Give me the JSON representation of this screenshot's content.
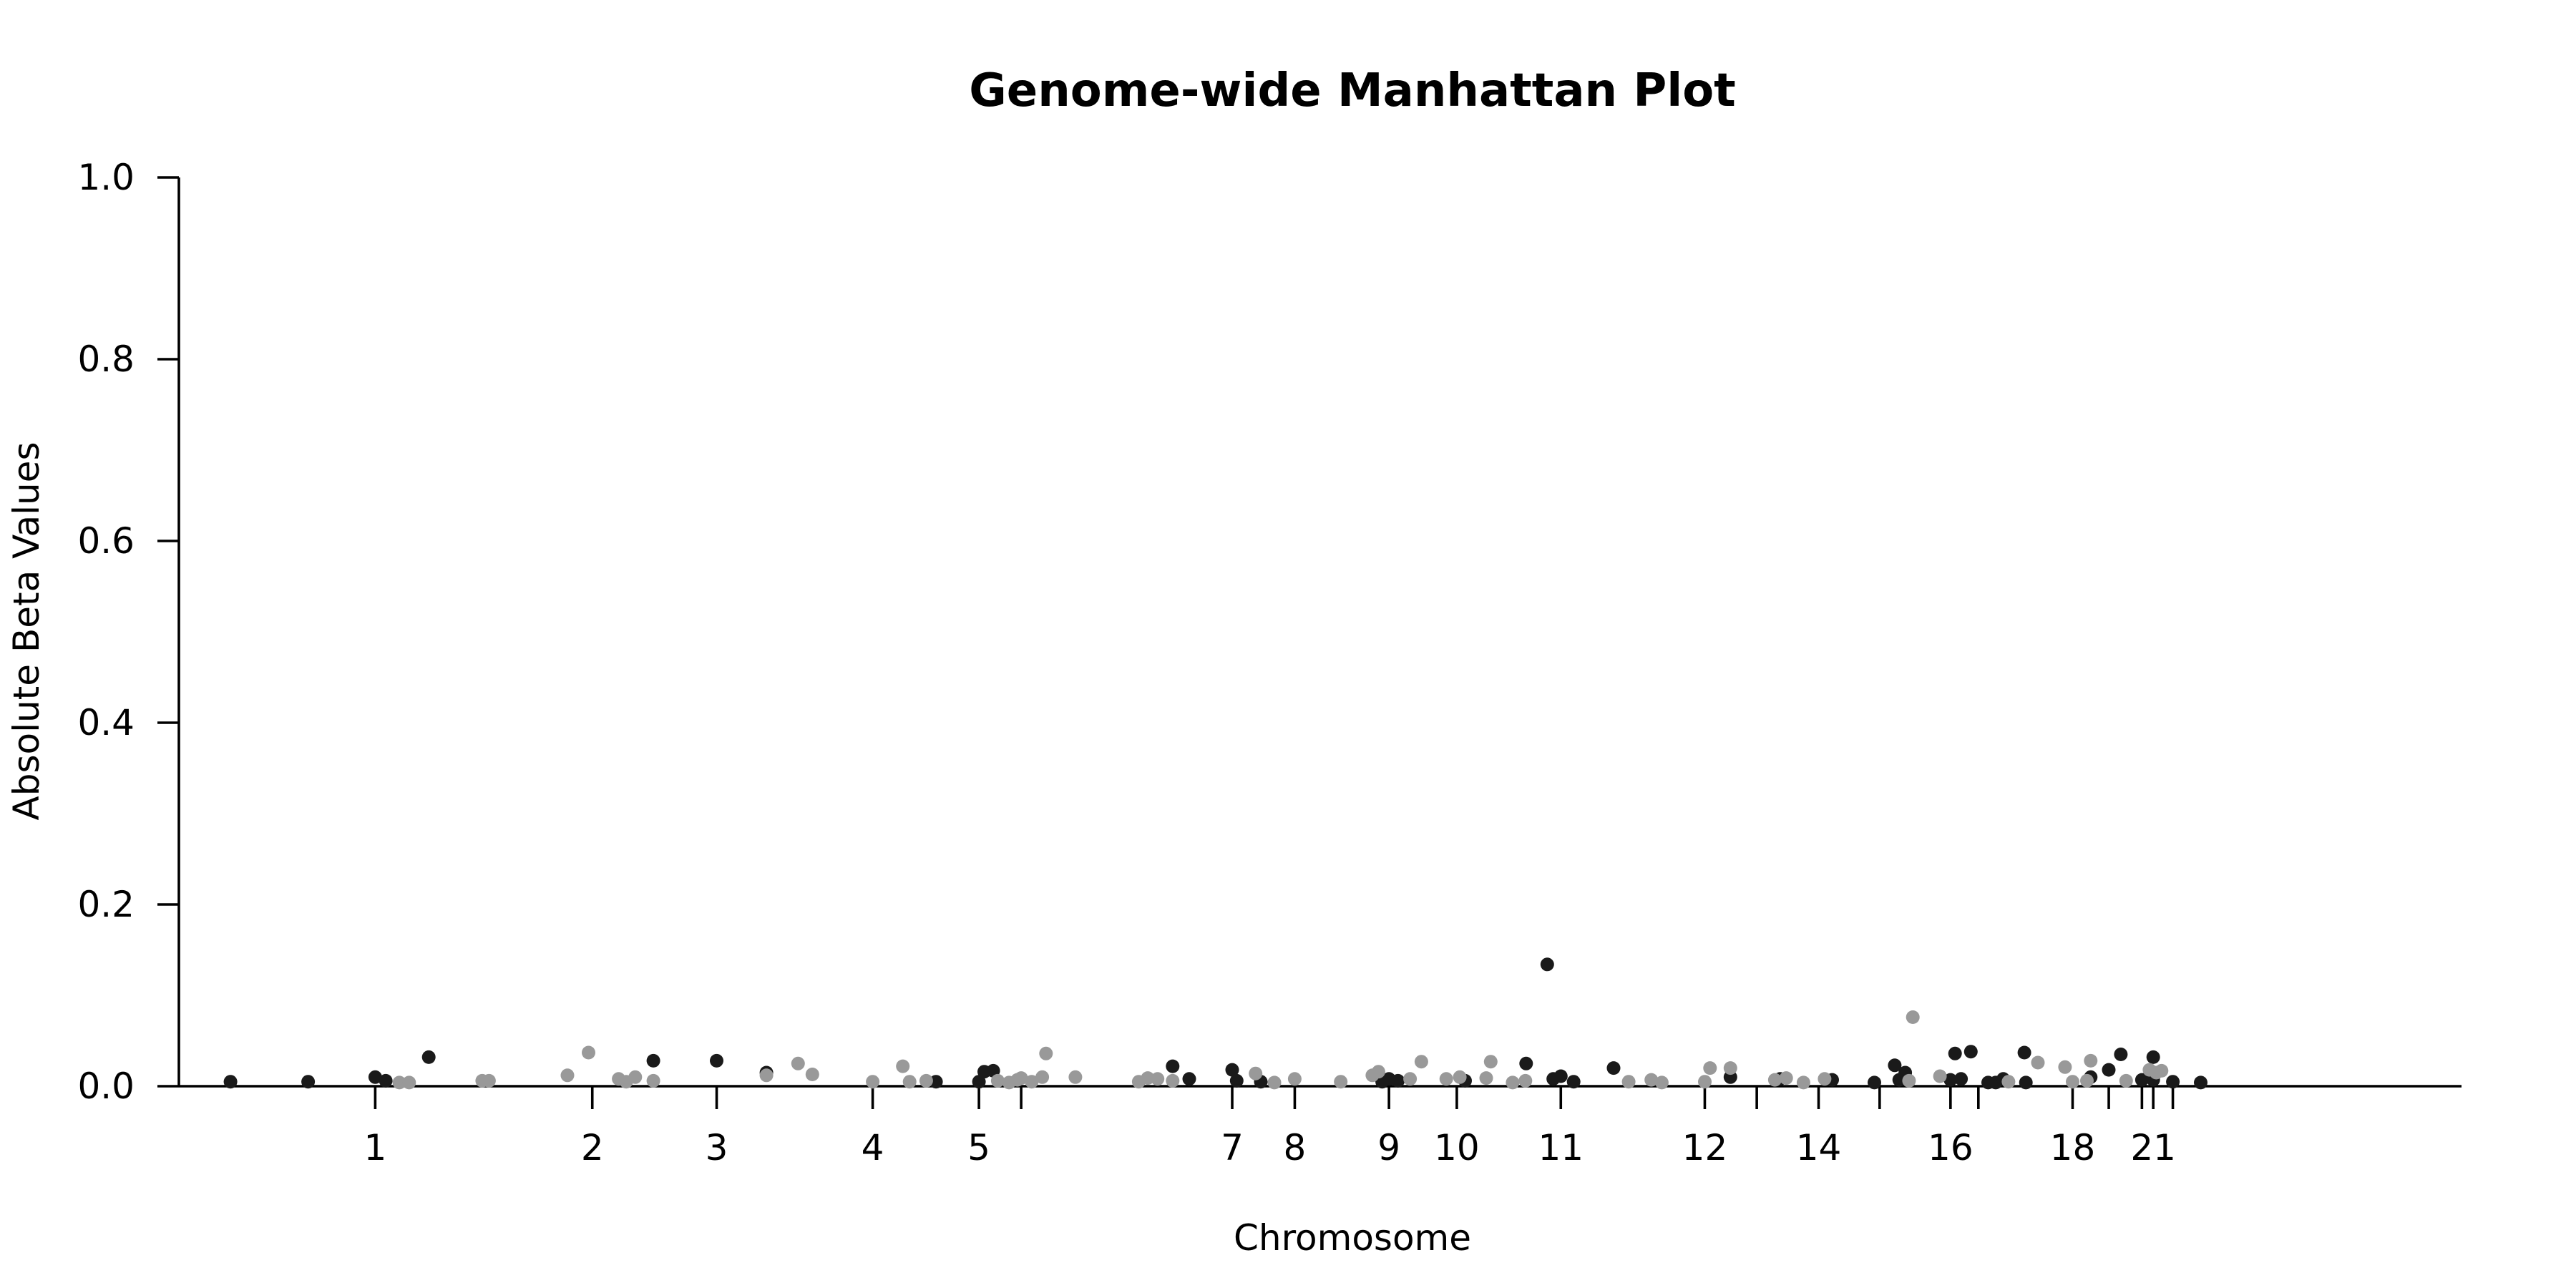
{
  "chart_data": {
    "type": "scatter",
    "title": "Genome-wide Manhattan Plot",
    "xlabel": "Chromosome",
    "ylabel": "Absolute Beta Values",
    "ylim": [
      0.0,
      1.0
    ],
    "yticks": [
      "0.0",
      "0.2",
      "0.4",
      "0.6",
      "0.8",
      "1.0"
    ],
    "grid": false,
    "x_position_units": "cumulative genome position in Mb",
    "xlim": [
      0,
      3000
    ],
    "chromosome_ticks": [
      {
        "label": "1",
        "pos": 232
      },
      {
        "label": "2",
        "pos": 520
      },
      {
        "label": "3",
        "pos": 685
      },
      {
        "label": "4",
        "pos": 892
      },
      {
        "label": "5",
        "pos": 1033
      },
      {
        "label": "",
        "pos": 1089
      },
      {
        "label": "7",
        "pos": 1369
      },
      {
        "label": "8",
        "pos": 1452
      },
      {
        "label": "9",
        "pos": 1577
      },
      {
        "label": "10",
        "pos": 1667
      },
      {
        "label": "11",
        "pos": 1805
      },
      {
        "label": "12",
        "pos": 1996
      },
      {
        "label": "",
        "pos": 2065
      },
      {
        "label": "14",
        "pos": 2147
      },
      {
        "label": "",
        "pos": 2228
      },
      {
        "label": "16",
        "pos": 2322
      },
      {
        "label": "",
        "pos": 2359
      },
      {
        "label": "18",
        "pos": 2484
      },
      {
        "label": "",
        "pos": 2532
      },
      {
        "label": "",
        "pos": 2576
      },
      {
        "label": "21",
        "pos": 2591
      },
      {
        "label": "",
        "pos": 2617
      }
    ],
    "colors": {
      "dark": "#1a1a1a",
      "light": "#999999"
    },
    "series": [
      {
        "color": "dark",
        "points": [
          [
            40,
            0.005
          ],
          [
            143,
            0.005
          ],
          [
            232,
            0.01
          ],
          [
            246,
            0.006
          ],
          [
            303,
            0.032
          ],
          [
            601,
            0.028
          ],
          [
            685,
            0.028
          ],
          [
            751,
            0.015
          ],
          [
            976,
            0.005
          ],
          [
            1033,
            0.005
          ],
          [
            1040,
            0.016
          ],
          [
            1052,
            0.017
          ],
          [
            1290,
            0.022
          ],
          [
            1312,
            0.008
          ],
          [
            1369,
            0.018
          ],
          [
            1375,
            0.006
          ],
          [
            1407,
            0.005
          ],
          [
            1568,
            0.005
          ],
          [
            1577,
            0.008
          ],
          [
            1589,
            0.006
          ],
          [
            1678,
            0.006
          ],
          [
            1759,
            0.025
          ],
          [
            1787,
            0.134
          ],
          [
            1795,
            0.008
          ],
          [
            1805,
            0.011
          ],
          [
            1822,
            0.005
          ],
          [
            1875,
            0.02
          ],
          [
            2030,
            0.01
          ],
          [
            2096,
            0.008
          ],
          [
            2165,
            0.007
          ],
          [
            2221,
            0.004
          ],
          [
            2248,
            0.023
          ],
          [
            2254,
            0.007
          ],
          [
            2262,
            0.015
          ],
          [
            2322,
            0.007
          ],
          [
            2328,
            0.036
          ],
          [
            2336,
            0.008
          ],
          [
            2349,
            0.038
          ],
          [
            2372,
            0.004
          ],
          [
            2382,
            0.004
          ],
          [
            2392,
            0.008
          ],
          [
            2420,
            0.037
          ],
          [
            2422,
            0.004
          ],
          [
            2508,
            0.01
          ],
          [
            2532,
            0.018
          ],
          [
            2548,
            0.035
          ],
          [
            2576,
            0.007
          ],
          [
            2591,
            0.032
          ],
          [
            2591,
            0.007
          ],
          [
            2617,
            0.005
          ],
          [
            2654,
            0.004
          ]
        ]
      },
      {
        "color": "light",
        "points": [
          [
            264,
            0.004
          ],
          [
            277,
            0.004
          ],
          [
            374,
            0.006
          ],
          [
            383,
            0.006
          ],
          [
            487,
            0.012
          ],
          [
            515,
            0.037
          ],
          [
            555,
            0.008
          ],
          [
            565,
            0.005
          ],
          [
            577,
            0.01
          ],
          [
            601,
            0.006
          ],
          [
            751,
            0.012
          ],
          [
            793,
            0.025
          ],
          [
            812,
            0.013
          ],
          [
            892,
            0.005
          ],
          [
            932,
            0.022
          ],
          [
            941,
            0.005
          ],
          [
            963,
            0.006
          ],
          [
            1058,
            0.006
          ],
          [
            1073,
            0.004
          ],
          [
            1084,
            0.007
          ],
          [
            1089,
            0.009
          ],
          [
            1103,
            0.005
          ],
          [
            1122,
            0.036
          ],
          [
            1117,
            0.01
          ],
          [
            1161,
            0.01
          ],
          [
            1245,
            0.005
          ],
          [
            1257,
            0.009
          ],
          [
            1270,
            0.008
          ],
          [
            1290,
            0.006
          ],
          [
            1400,
            0.014
          ],
          [
            1425,
            0.004
          ],
          [
            1452,
            0.008
          ],
          [
            1513,
            0.005
          ],
          [
            1555,
            0.012
          ],
          [
            1563,
            0.016
          ],
          [
            1605,
            0.008
          ],
          [
            1620,
            0.027
          ],
          [
            1653,
            0.008
          ],
          [
            1671,
            0.01
          ],
          [
            1706,
            0.009
          ],
          [
            1712,
            0.027
          ],
          [
            1741,
            0.004
          ],
          [
            1758,
            0.006
          ],
          [
            1895,
            0.005
          ],
          [
            1925,
            0.007
          ],
          [
            1939,
            0.004
          ],
          [
            1996,
            0.005
          ],
          [
            2003,
            0.02
          ],
          [
            2030,
            0.02
          ],
          [
            2089,
            0.007
          ],
          [
            2104,
            0.009
          ],
          [
            2127,
            0.004
          ],
          [
            2155,
            0.008
          ],
          [
            2272,
            0.076
          ],
          [
            2267,
            0.006
          ],
          [
            2308,
            0.011
          ],
          [
            2399,
            0.005
          ],
          [
            2438,
            0.026
          ],
          [
            2474,
            0.021
          ],
          [
            2484,
            0.005
          ],
          [
            2503,
            0.006
          ],
          [
            2508,
            0.028
          ],
          [
            2555,
            0.006
          ],
          [
            2586,
            0.018
          ],
          [
            2595,
            0.015
          ],
          [
            2602,
            0.017
          ]
        ]
      }
    ]
  }
}
